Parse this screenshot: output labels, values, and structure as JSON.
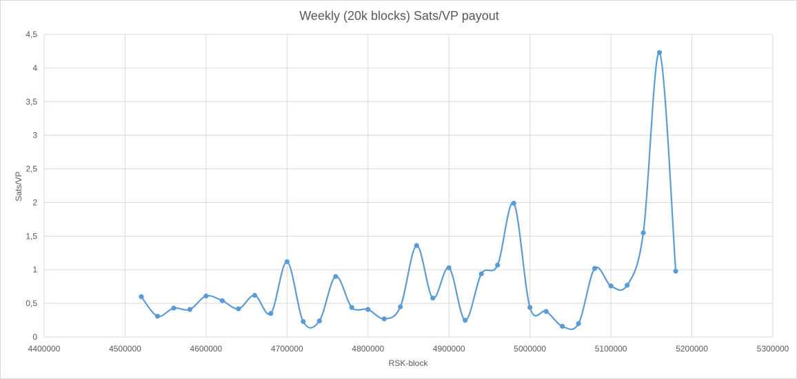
{
  "chart_data": {
    "type": "scatter",
    "title": "Weekly (20k blocks) Sats/VP payout",
    "xlabel": "RSK-block",
    "ylabel": "Sats/VP",
    "xlim": [
      4400000,
      5300000
    ],
    "ylim": [
      0,
      4.5
    ],
    "x_ticks": [
      4400000,
      4500000,
      4600000,
      4700000,
      4800000,
      4900000,
      5000000,
      5100000,
      5200000,
      5300000
    ],
    "x_tick_labels": [
      "4400000",
      "4500000",
      "4600000",
      "4700000",
      "4800000",
      "4900000",
      "5000000",
      "5100000",
      "5200000",
      "5300000"
    ],
    "y_ticks": [
      0,
      0.5,
      1,
      1.5,
      2,
      2.5,
      3,
      3.5,
      4,
      4.5
    ],
    "y_tick_labels": [
      "0",
      "0,5",
      "1",
      "1,5",
      "2",
      "2,5",
      "3",
      "3,5",
      "4",
      "4,5"
    ],
    "grid": true,
    "smooth_lines": true,
    "color": "#5b9bd5",
    "x": [
      4520000,
      4540000,
      4560000,
      4580000,
      4600000,
      4620000,
      4640000,
      4660000,
      4680000,
      4700000,
      4720000,
      4740000,
      4760000,
      4780000,
      4800000,
      4820000,
      4840000,
      4860000,
      4880000,
      4900000,
      4920000,
      4940000,
      4960000,
      4980000,
      5000000,
      5020000,
      5040000,
      5060000,
      5080000,
      5100000,
      5120000,
      5140000,
      5160000,
      5180000
    ],
    "y": [
      0.6,
      0.31,
      0.43,
      0.41,
      0.61,
      0.54,
      0.42,
      0.62,
      0.35,
      1.12,
      0.23,
      0.24,
      0.9,
      0.44,
      0.41,
      0.27,
      0.45,
      1.36,
      0.58,
      1.03,
      0.25,
      0.94,
      1.07,
      1.99,
      0.44,
      0.38,
      0.16,
      0.2,
      1.02,
      0.76,
      0.77,
      1.55,
      4.23,
      0.98
    ]
  }
}
